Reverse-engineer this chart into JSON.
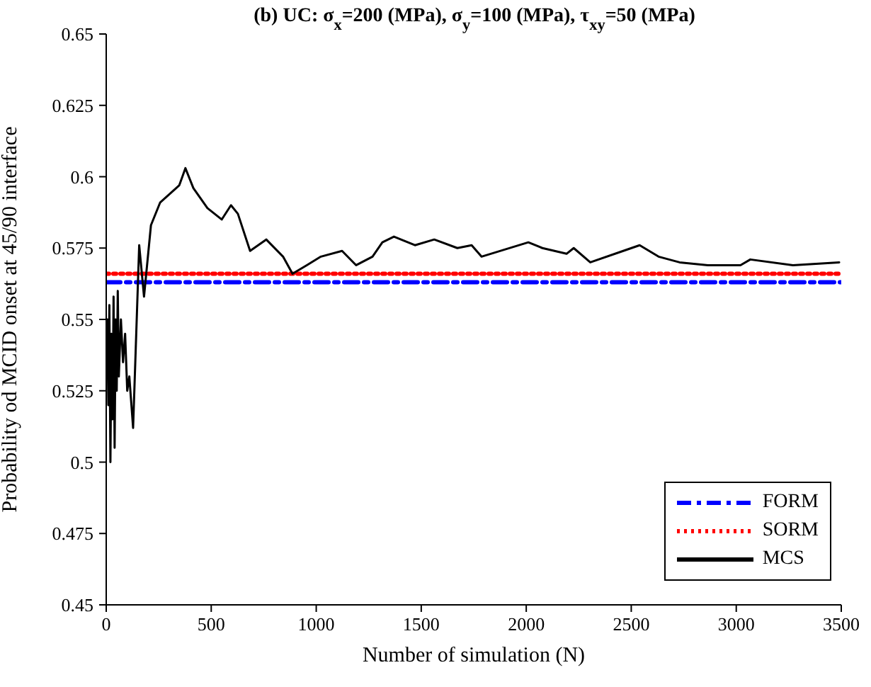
{
  "chart_data": {
    "type": "line",
    "title": "(b) UC: σ$_{x}$=200 (MPa), σ$_{y}$=100 (MPa), τ$_{xy}$=50 (MPa)",
    "xlabel": "Number of simulation (N)",
    "ylabel": "Probability od MCID onset at 45/90 interface",
    "xlim": [
      0,
      3500
    ],
    "xticks": [
      0,
      500,
      1000,
      1500,
      2000,
      2500,
      3000,
      3500
    ],
    "ylim": [
      0.45,
      0.65
    ],
    "yticks": [
      0.45,
      0.475,
      0.5,
      0.525,
      0.55,
      0.575,
      0.6,
      0.625,
      0.65
    ],
    "grid": false,
    "legend": "bottom right",
    "marker": "none",
    "series": [
      {
        "name": "FORM",
        "color": "#0000ff",
        "line_style": "dashed",
        "x": [
          0,
          3500
        ],
        "values": [
          0.563,
          0.563
        ]
      },
      {
        "name": "SORM",
        "color": "#ff0000",
        "line_style": "dotted",
        "x": [
          0,
          3500
        ],
        "values": [
          0.566,
          0.566
        ]
      },
      {
        "name": "MCS",
        "color": "#000000",
        "line_style": "solid",
        "x": [
          5,
          10,
          15,
          20,
          25,
          30,
          35,
          40,
          45,
          50,
          55,
          60,
          70,
          80,
          90,
          100,
          110,
          120,
          128,
          157,
          180,
          213,
          257,
          303,
          348,
          377,
          415,
          482,
          550,
          594,
          627,
          685,
          762,
          842,
          887,
          955,
          1022,
          1123,
          1190,
          1268,
          1315,
          1370,
          1470,
          1562,
          1672,
          1740,
          1787,
          2010,
          2077,
          2192,
          2226,
          2305,
          2462,
          2540,
          2630,
          2730,
          2865,
          3020,
          3067,
          3270,
          3490
        ],
        "values": [
          0.55,
          0.52,
          0.555,
          0.5,
          0.545,
          0.515,
          0.558,
          0.505,
          0.55,
          0.525,
          0.56,
          0.53,
          0.55,
          0.535,
          0.545,
          0.525,
          0.53,
          0.52,
          0.512,
          0.576,
          0.558,
          0.583,
          0.591,
          0.594,
          0.597,
          0.603,
          0.596,
          0.589,
          0.585,
          0.59,
          0.587,
          0.574,
          0.578,
          0.572,
          0.566,
          0.569,
          0.572,
          0.574,
          0.569,
          0.572,
          0.577,
          0.579,
          0.576,
          0.578,
          0.575,
          0.576,
          0.572,
          0.577,
          0.575,
          0.573,
          0.575,
          0.57,
          0.574,
          0.576,
          0.572,
          0.57,
          0.569,
          0.569,
          0.571,
          0.569,
          0.57
        ]
      }
    ]
  }
}
